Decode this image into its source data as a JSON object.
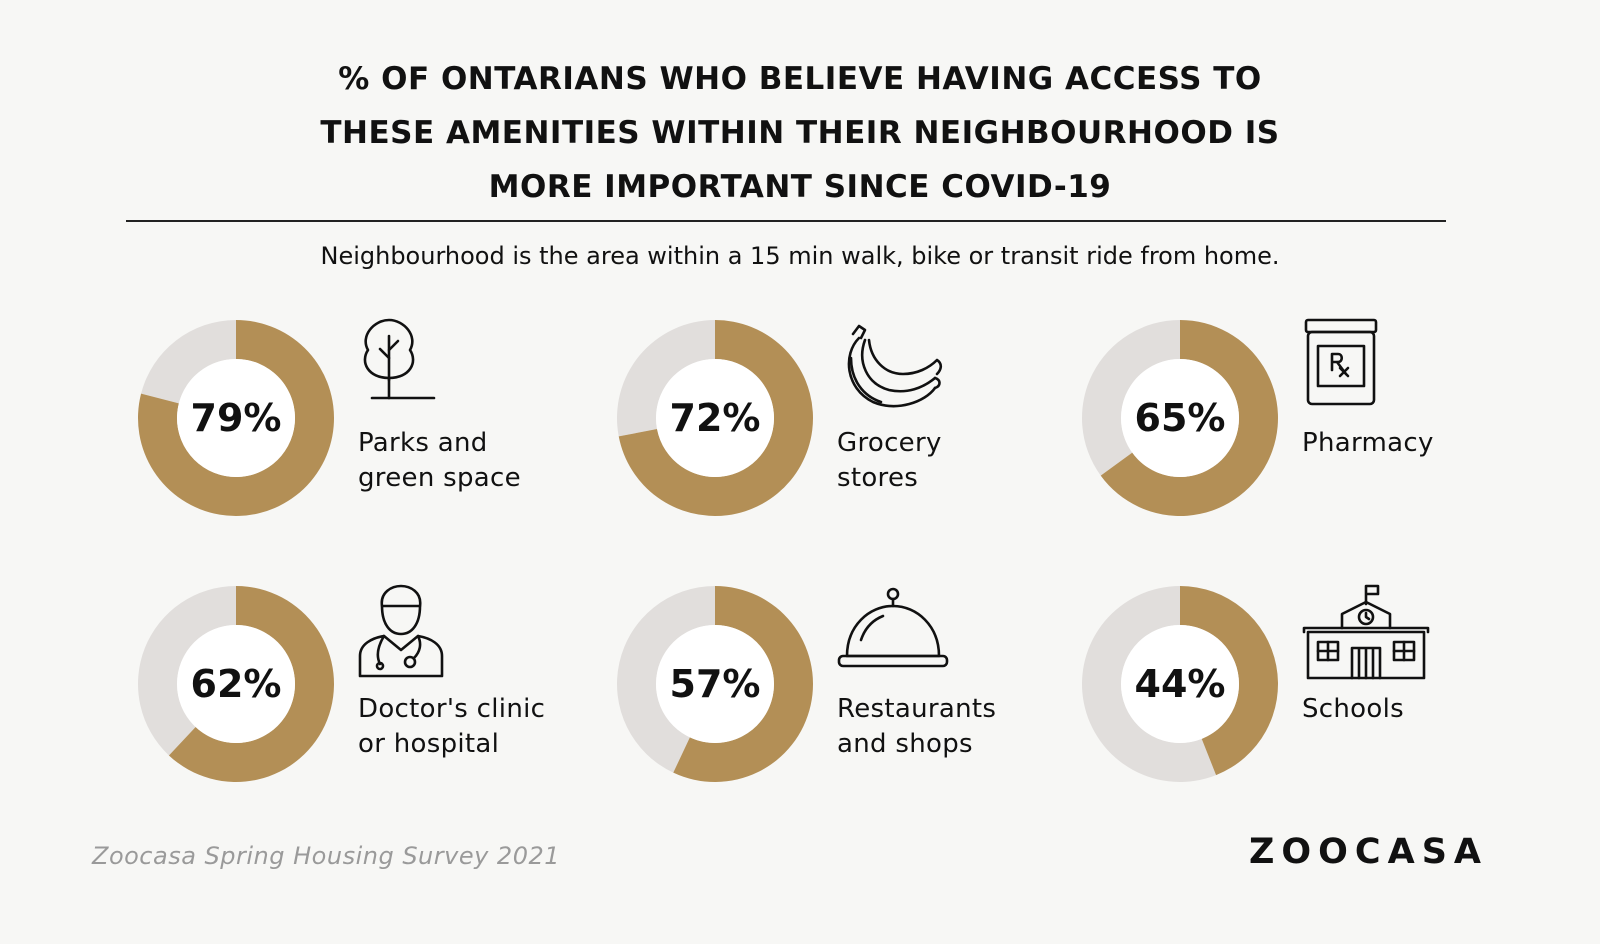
{
  "title_lines": [
    "% OF ONTARIANS WHO BELIEVE HAVING ACCESS TO",
    "THESE AMENITIES WITHIN THEIR NEIGHBOURHOOD IS",
    "MORE IMPORTANT SINCE COVID-19"
  ],
  "subtitle": "Neighbourhood is the area within a 15 min walk, bike or transit ride from home.",
  "source": "Zoocasa Spring Housing Survey 2021",
  "brand": "ZOOCASA",
  "colors": {
    "fill": "#b38f56",
    "track": "#e1dedc",
    "background": "#f7f7f5"
  },
  "chart_data": {
    "type": "pie",
    "title": "% OF ONTARIANS WHO BELIEVE HAVING ACCESS TO THESE AMENITIES WITHIN THEIR NEIGHBOURHOOD IS MORE IMPORTANT SINCE COVID-19",
    "unit": "%",
    "categories": [
      "Parks and green space",
      "Grocery stores",
      "Pharmacy",
      "Doctor's clinic or hospital",
      "Restaurants and shops",
      "Schools"
    ],
    "values": [
      79,
      72,
      65,
      62,
      57,
      44
    ],
    "items": [
      {
        "value": 79,
        "pct_label": "79%",
        "label_lines": [
          "Parks and",
          "green space"
        ],
        "icon": "tree-icon"
      },
      {
        "value": 72,
        "pct_label": "72%",
        "label_lines": [
          "Grocery",
          "stores"
        ],
        "icon": "banana-icon"
      },
      {
        "value": 65,
        "pct_label": "65%",
        "label_lines": [
          "Pharmacy"
        ],
        "icon": "pharmacy-bottle-icon"
      },
      {
        "value": 62,
        "pct_label": "62%",
        "label_lines": [
          "Doctor's clinic",
          "or hospital"
        ],
        "icon": "doctor-icon"
      },
      {
        "value": 57,
        "pct_label": "57%",
        "label_lines": [
          "Restaurants",
          "and shops"
        ],
        "icon": "food-cloche-icon"
      },
      {
        "value": 44,
        "pct_label": "44%",
        "label_lines": [
          "Schools"
        ],
        "icon": "school-icon"
      }
    ]
  }
}
